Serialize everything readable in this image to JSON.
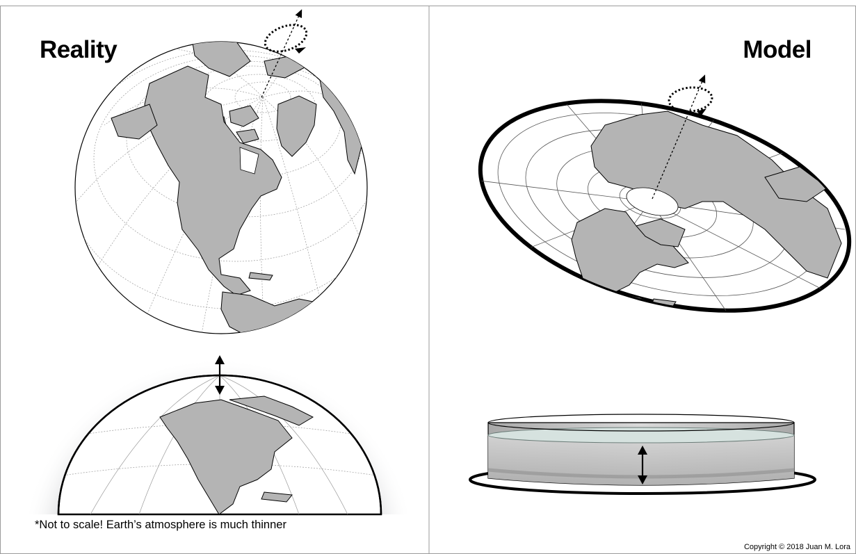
{
  "panels": {
    "left": {
      "heading": "Reality"
    },
    "right": {
      "heading": "Model"
    }
  },
  "footnote": "*Not to scale! Earth’s atmosphere is much thinner",
  "copyright": "Copyright © 2018 Juan M. Lora",
  "colors": {
    "land": "#b4b4b4",
    "ocean": "#ffffff",
    "outline": "#000000",
    "atmosphere": "#c8c9cc",
    "water": "#cfd8d6",
    "tank": "#c4c4c4"
  }
}
